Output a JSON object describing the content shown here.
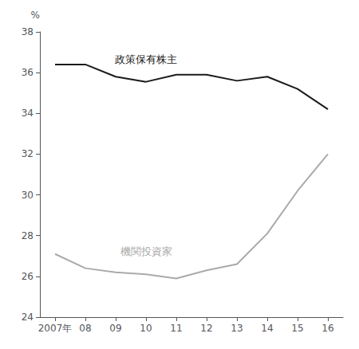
{
  "chart_data": {
    "type": "line",
    "categories": [
      "2007年",
      "08",
      "09",
      "10",
      "11",
      "12",
      "13",
      "14",
      "15",
      "16"
    ],
    "series": [
      {
        "name": "政策保有株主",
        "color": "#1a1a1a",
        "values": [
          36.4,
          36.4,
          35.8,
          35.55,
          35.9,
          35.9,
          35.6,
          35.8,
          35.2,
          34.2
        ]
      },
      {
        "name": "機関投資家",
        "color": "#aaaaaa",
        "values": [
          27.1,
          26.4,
          26.2,
          26.1,
          25.9,
          26.3,
          26.6,
          28.1,
          30.2,
          32.0
        ]
      }
    ],
    "ylabel": "%",
    "ylim": [
      24,
      38
    ],
    "yticks": [
      24,
      26,
      28,
      30,
      32,
      34,
      36,
      38
    ],
    "grid": false
  }
}
